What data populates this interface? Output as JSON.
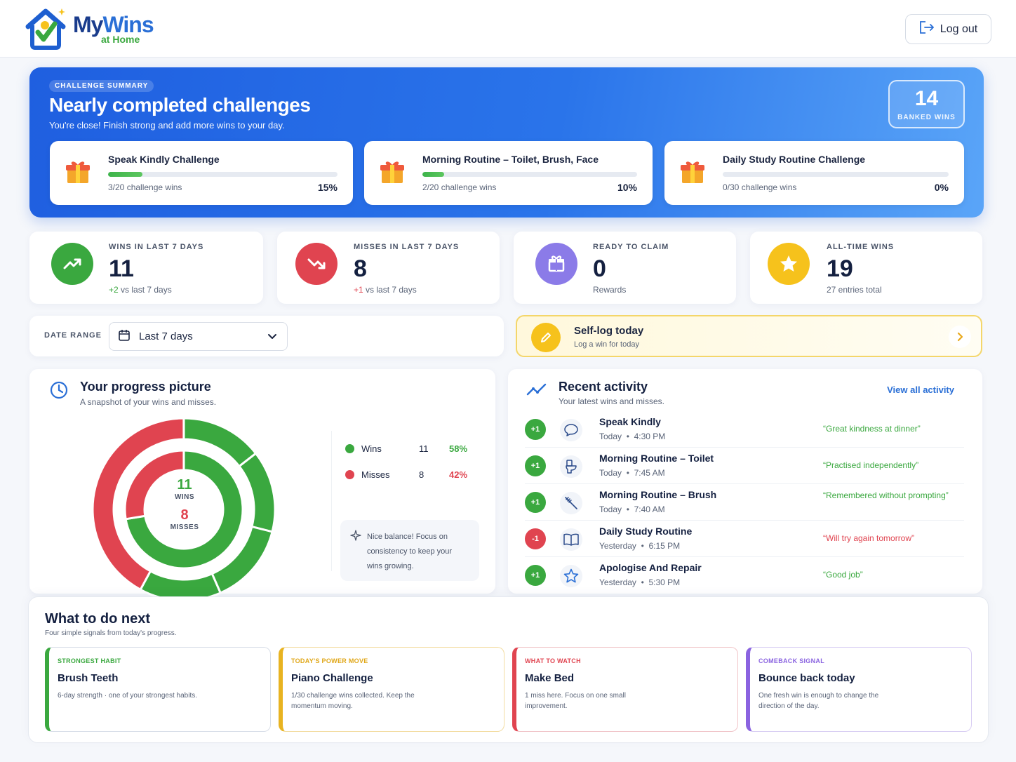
{
  "header": {
    "logo_main_my": "My",
    "logo_main_wins": "Wins",
    "logo_sub": "at Home",
    "logout_label": "Log out"
  },
  "hero": {
    "tag": "CHALLENGE SUMMARY",
    "title": "Nearly completed challenges",
    "subtitle": "You're close! Finish strong and add more wins to your day.",
    "banked_count": "14",
    "banked_label": "BANKED WINS",
    "challenges": [
      {
        "name": "Speak Kindly Challenge",
        "count": "3/20 challenge wins",
        "pct": "15%",
        "progress": 0.15
      },
      {
        "name": "Morning Routine – Toilet, Brush, Face",
        "count": "2/20 challenge wins",
        "pct": "10%",
        "progress": 0.1
      },
      {
        "name": "Daily Study Routine Challenge",
        "count": "0/30 challenge wins",
        "pct": "0%",
        "progress": 0
      }
    ]
  },
  "stats": [
    {
      "label": "WINS IN LAST 7 DAYS",
      "value": "11",
      "sub_delta": "+2",
      "sub_text": " vs last 7 days",
      "color": "#3aa83f",
      "icon": "trending-up-icon"
    },
    {
      "label": "MISSES IN LAST 7 DAYS",
      "value": "8",
      "sub_delta": "+1",
      "sub_text": " vs last 7 days",
      "color": "#e04450",
      "icon": "trending-down-icon"
    },
    {
      "label": "READY TO CLAIM",
      "value": "0",
      "sub_delta": "",
      "sub_text": "Rewards",
      "color": "#8b7be8",
      "icon": "gift-icon"
    },
    {
      "label": "ALL-TIME WINS",
      "value": "19",
      "sub_delta": "",
      "sub_text": "27 entries total",
      "color": "#f6c21c",
      "icon": "star-icon"
    }
  ],
  "date_range": {
    "label": "DATE RANGE",
    "value": "Last 7 days"
  },
  "self_log": {
    "title": "Self-log today",
    "subtitle": "Log a win for today"
  },
  "progress": {
    "title": "Your progress picture",
    "subtitle": "A snapshot of your wins and misses.",
    "center_wins": "11",
    "center_wins_label": "WINS",
    "center_misses": "8",
    "center_misses_label": "MISSES",
    "legend": [
      {
        "name": "Wins",
        "count": "11",
        "pct": "58%",
        "color": "#3aa83f"
      },
      {
        "name": "Misses",
        "count": "8",
        "pct": "42%",
        "color": "#e04450"
      }
    ],
    "hint": "Nice balance! Focus on consistency to keep your wins growing."
  },
  "activity": {
    "title": "Recent activity",
    "subtitle": "Your latest wins and misses.",
    "view_all": "View all activity",
    "items": [
      {
        "badge": "+1",
        "type": "win",
        "name": "Speak Kindly",
        "day": "Today",
        "time": "4:30 PM",
        "note": "“Great kindness at dinner”",
        "icon": "speech-bubble-icon"
      },
      {
        "badge": "+1",
        "type": "win",
        "name": "Morning Routine – Toilet",
        "day": "Today",
        "time": "7:45 AM",
        "note": "“Practised independently”",
        "icon": "toilet-icon"
      },
      {
        "badge": "+1",
        "type": "win",
        "name": "Morning Routine – Brush",
        "day": "Today",
        "time": "7:40 AM",
        "note": "“Remembered without prompting”",
        "icon": "toothbrush-icon"
      },
      {
        "badge": "-1",
        "type": "miss",
        "name": "Daily Study Routine",
        "day": "Yesterday",
        "time": "6:15 PM",
        "note": "“Will try again tomorrow”",
        "icon": "book-icon"
      },
      {
        "badge": "+1",
        "type": "win",
        "name": "Apologise And Repair",
        "day": "Yesterday",
        "time": "5:30 PM",
        "note": "“Good job”",
        "icon": "star-outline-icon"
      }
    ]
  },
  "next": {
    "title": "What to do next",
    "subtitle": "Four simple signals from today's progress.",
    "cards": [
      {
        "tag": "STRONGEST HABIT",
        "title": "Brush Teeth",
        "desc": "6-day strength · one of your strongest habits.",
        "color": "#3aa83f"
      },
      {
        "tag": "TODAY'S POWER MOVE",
        "title": "Piano Challenge",
        "desc": "1/30 challenge wins collected. Keep the momentum moving.",
        "color": "#e8b321"
      },
      {
        "tag": "WHAT TO WATCH",
        "title": "Make Bed",
        "desc": "1 miss here. Focus on one small improvement.",
        "color": "#e04450"
      },
      {
        "tag": "COMEBACK SIGNAL",
        "title": "Bounce back today",
        "desc": "One fresh win is enough to change the direction of the day.",
        "color": "#8a63e0"
      }
    ]
  }
}
